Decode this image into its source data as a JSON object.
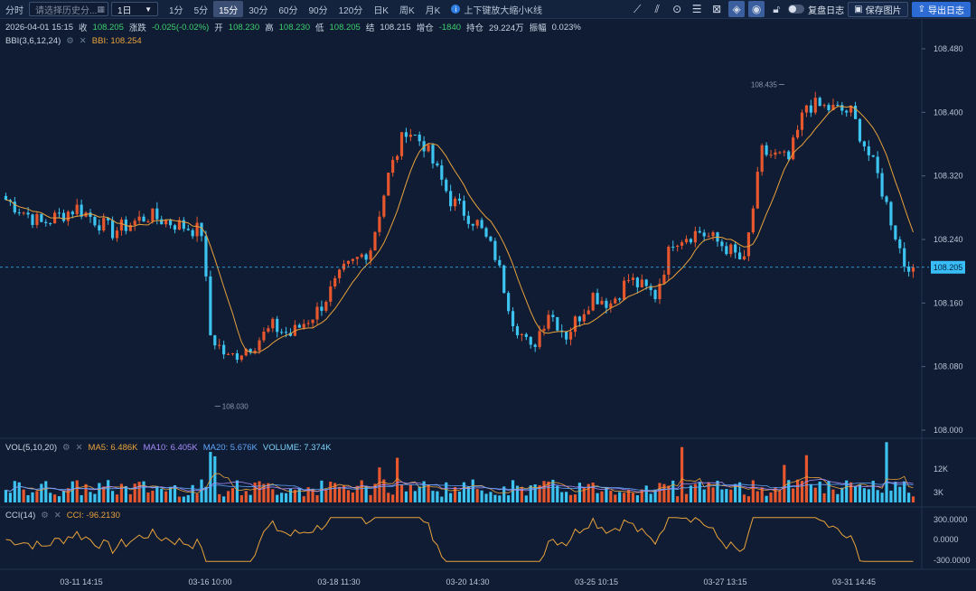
{
  "toolbar": {
    "timeshare": "分时",
    "history_placeholder": "请选择历史分...",
    "period_select": "1日",
    "periods": [
      "1分",
      "5分",
      "15分",
      "30分",
      "60分",
      "90分",
      "120分",
      "日K",
      "周K",
      "月K"
    ],
    "selected_period": "15分",
    "hint": "上下键放大缩小K线",
    "review_log": "复盘日志",
    "save_image": "保存图片",
    "export_log": "导出日志"
  },
  "info_bar": {
    "datetime": "2026-04-01 15:15",
    "close_label": "收",
    "close": "108.205",
    "change_label": "涨跌",
    "change": "-0.025(-0.02%)",
    "open_label": "开",
    "open": "108.230",
    "high_label": "高",
    "high": "108.230",
    "low_label": "低",
    "low": "108.205",
    "settle_label": "结",
    "settle": "108.215",
    "oi_change_label": "增仓",
    "oi_change": "-1840",
    "oi_label": "持仓",
    "oi": "29.224万",
    "amplitude_label": "振幅",
    "amplitude": "0.023%"
  },
  "bbi": {
    "name": "BBI(3,6,12,24)",
    "label": "BBI: 108.254"
  },
  "vol": {
    "name": "VOL(5,10,20)",
    "ma5": "MA5: 6.486K",
    "ma10": "MA10: 6.405K",
    "ma20": "MA20: 5.676K",
    "volume": "VOLUME: 7.374K"
  },
  "cci": {
    "name": "CCI(14)",
    "label": "CCI: -96.2130"
  },
  "colors": {
    "bg": "#0f1c33",
    "up": "#e6572e",
    "down": "#3cc3f0",
    "bbi": "#e9a23b",
    "ma10": "#a78bfa",
    "ma20": "#60a5fa",
    "current": "#38bdf8"
  },
  "chart_data": [
    {
      "type": "candlestick",
      "title": "",
      "y_ticks": [
        "108.480",
        "108.400",
        "108.320",
        "108.240",
        "108.160",
        "108.080",
        "108.000"
      ],
      "ylim": [
        108.0,
        108.48
      ],
      "x_ticks": [
        "03-11 14:15",
        "03-16 10:00",
        "03-18 11:30",
        "03-20 14:30",
        "03-25 10:15",
        "03-27 13:15",
        "03-31 14:45"
      ],
      "current_price": "108.205",
      "high_mark": {
        "label": "108.435",
        "value": 108.435,
        "index": 175
      },
      "low_mark": {
        "label": "108.030",
        "value": 108.03,
        "index": 47
      },
      "anchors": [
        [
          0,
          108.29
        ],
        [
          8,
          108.26
        ],
        [
          16,
          108.28
        ],
        [
          24,
          108.25
        ],
        [
          32,
          108.27
        ],
        [
          38,
          108.26
        ],
        [
          44,
          108.25
        ],
        [
          46,
          108.12
        ],
        [
          50,
          108.09
        ],
        [
          56,
          108.11
        ],
        [
          60,
          108.13
        ],
        [
          64,
          108.12
        ],
        [
          70,
          108.15
        ],
        [
          76,
          108.2
        ],
        [
          82,
          108.23
        ],
        [
          86,
          108.32
        ],
        [
          90,
          108.38
        ],
        [
          94,
          108.36
        ],
        [
          100,
          108.29
        ],
        [
          106,
          108.26
        ],
        [
          110,
          108.22
        ],
        [
          114,
          108.14
        ],
        [
          118,
          108.1
        ],
        [
          122,
          108.15
        ],
        [
          126,
          108.12
        ],
        [
          132,
          108.17
        ],
        [
          136,
          108.16
        ],
        [
          140,
          108.19
        ],
        [
          146,
          108.17
        ],
        [
          150,
          108.24
        ],
        [
          156,
          108.25
        ],
        [
          162,
          108.23
        ],
        [
          166,
          108.21
        ],
        [
          170,
          108.35
        ],
        [
          176,
          108.34
        ],
        [
          180,
          108.41
        ],
        [
          190,
          108.4
        ],
        [
          196,
          108.32
        ],
        [
          202,
          108.21
        ]
      ]
    },
    {
      "type": "bar",
      "title": "",
      "y_ticks": [
        "12K",
        "3K"
      ],
      "series": [
        {
          "name": "MA5",
          "values": [
            6.486
          ]
        },
        {
          "name": "MA10",
          "values": [
            6.405
          ]
        },
        {
          "name": "MA20",
          "values": [
            5.676
          ]
        },
        {
          "name": "VOLUME",
          "values": [
            7.374
          ]
        }
      ]
    },
    {
      "type": "line",
      "title": "",
      "y_ticks": [
        "300.0000",
        "0.0000",
        "-300.0000"
      ],
      "ylim": [
        -300,
        300
      ],
      "series": [
        {
          "name": "CCI",
          "last": -96.213
        }
      ]
    }
  ]
}
